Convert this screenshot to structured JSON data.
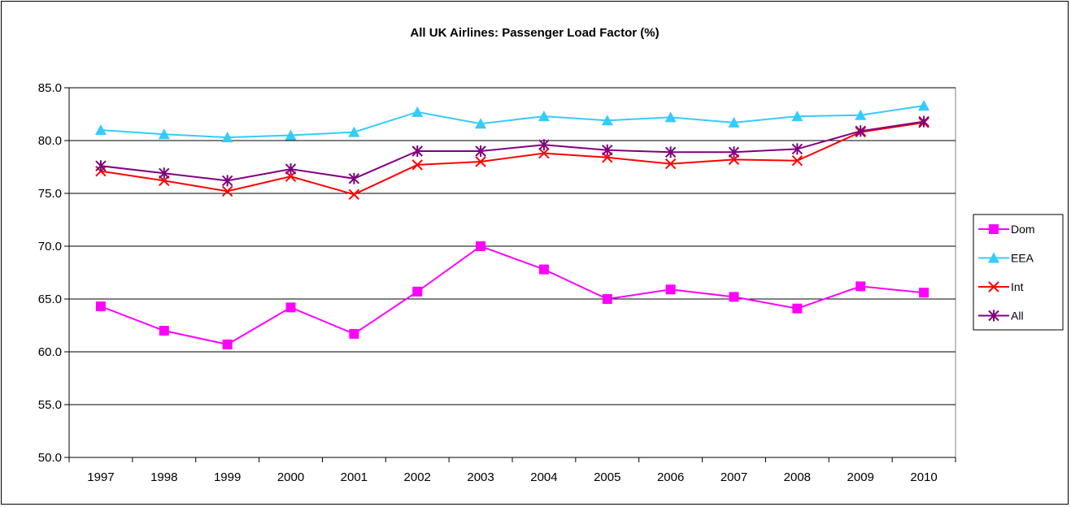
{
  "chart_data": {
    "type": "line",
    "title": "All UK Airlines: Passenger Load Factor (%)",
    "xlabel": "",
    "ylabel": "",
    "categories": [
      "1997",
      "1998",
      "1999",
      "2000",
      "2001",
      "2002",
      "2003",
      "2004",
      "2005",
      "2006",
      "2007",
      "2008",
      "2009",
      "2010"
    ],
    "ylim": [
      50,
      85
    ],
    "yticks": [
      "50.0",
      "55.0",
      "60.0",
      "65.0",
      "70.0",
      "75.0",
      "80.0",
      "85.0"
    ],
    "grid": true,
    "legend_position": "right",
    "series": [
      {
        "name": "Dom",
        "color": "#ff00ff",
        "marker": "square",
        "values": [
          64.3,
          62.0,
          60.7,
          64.2,
          61.7,
          65.7,
          70.0,
          67.8,
          65.0,
          65.9,
          65.2,
          64.1,
          66.2,
          65.6
        ]
      },
      {
        "name": "EEA",
        "color": "#33ccff",
        "marker": "triangle",
        "values": [
          81.0,
          80.6,
          80.3,
          80.5,
          80.8,
          82.7,
          81.6,
          82.3,
          81.9,
          82.2,
          81.7,
          82.3,
          82.4,
          83.3
        ]
      },
      {
        "name": "Int",
        "color": "#ff0000",
        "marker": "x",
        "values": [
          77.1,
          76.2,
          75.2,
          76.6,
          74.9,
          77.7,
          78.0,
          78.8,
          78.4,
          77.8,
          78.2,
          78.1,
          80.8,
          81.7
        ]
      },
      {
        "name": "All",
        "color": "#7f007f",
        "marker": "star",
        "values": [
          77.6,
          76.9,
          76.2,
          77.3,
          76.4,
          79.0,
          79.0,
          79.6,
          79.1,
          78.9,
          78.9,
          79.2,
          80.9,
          81.8
        ]
      }
    ]
  }
}
